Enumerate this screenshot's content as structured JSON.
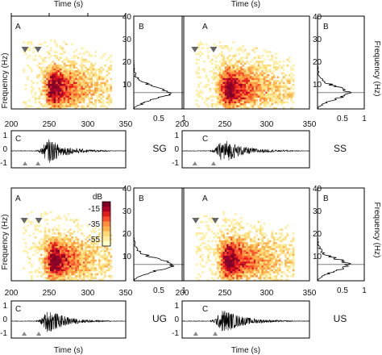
{
  "figure": {
    "top_xlabel": "Time (s)",
    "bottom_xlabel": "Time (s)",
    "ylabel_left": "Frequency (Hz)",
    "ylabel_right": "Frequency (Hz)",
    "colorbar": {
      "label": "dB",
      "ticks": [
        "-15",
        "-35",
        "-55"
      ]
    }
  },
  "panels": [
    {
      "id": "SG",
      "label": "SG",
      "sub_a": "A",
      "sub_b": "B",
      "sub_c": "C",
      "onset_times": [
        218,
        235
      ],
      "hist_peak": 0.62
    },
    {
      "id": "SS",
      "label": "SS",
      "sub_a": "A",
      "sub_b": "B",
      "sub_c": "C",
      "onset_times": [
        215,
        237
      ],
      "hist_peak": 0.58
    },
    {
      "id": "UG",
      "label": "UG",
      "sub_a": "A",
      "sub_b": "B",
      "sub_c": "C",
      "onset_times": [
        217,
        236
      ],
      "hist_peak": 0.7
    },
    {
      "id": "US",
      "label": "US",
      "sub_a": "A",
      "sub_b": "B",
      "sub_c": "C",
      "onset_times": [
        216,
        239
      ],
      "hist_peak": 0.55
    }
  ],
  "chart_data": [
    {
      "type": "heatmap",
      "panel": "A",
      "xlabel": "Time (s)",
      "ylabel": "Frequency (Hz)",
      "xlim": [
        200,
        350
      ],
      "ylim": [
        0,
        40
      ],
      "xticks": [
        "200",
        "250",
        "300",
        "350"
      ],
      "yticks": [
        "10",
        "20",
        "30",
        "40"
      ],
      "color_scale_db": [
        -15,
        -35,
        -55
      ],
      "colors": [
        "#ffffcc",
        "#ffeda0",
        "#fed976",
        "#feb24c",
        "#fd8d3c",
        "#fc4e2a",
        "#e31a1c",
        "#b10026",
        "#800026"
      ],
      "energy_band_hz": [
        2,
        25
      ],
      "energy_time_s": [
        215,
        330
      ],
      "peak_time_s": 255,
      "peak_freq_hz": 8
    },
    {
      "type": "bar",
      "panel": "B",
      "orientation": "horizontal",
      "ylabel": "Frequency (Hz)",
      "xlim": [
        0,
        1
      ],
      "ylim": [
        0,
        40
      ],
      "xticks": [
        "0.5",
        "1"
      ],
      "peak_freq_hz": 7
    },
    {
      "type": "line",
      "panel": "C",
      "xlabel": "Time (s)",
      "xlim": [
        200,
        350
      ],
      "ylim": [
        -1.5,
        1.5
      ],
      "yticks": [
        "1",
        "0",
        "-1"
      ],
      "signal_onset_s": 232,
      "signal_peak_s": 250,
      "signal_end_s": 330
    }
  ]
}
